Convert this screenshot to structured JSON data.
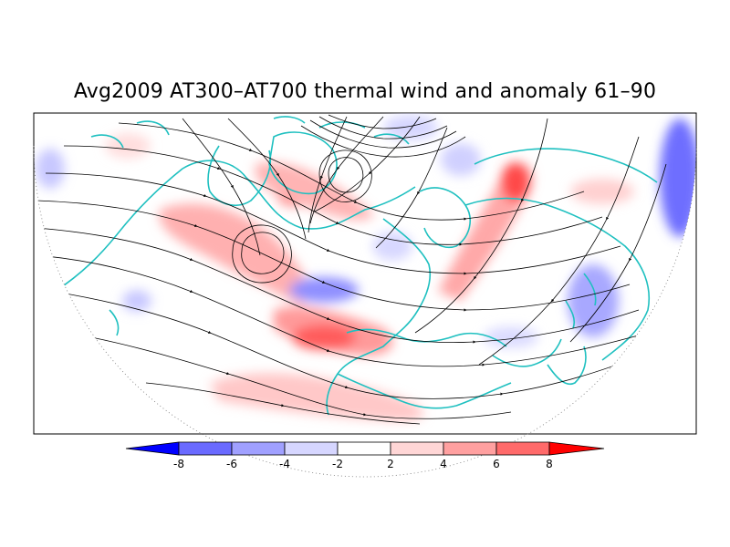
{
  "title": "Avg2009 AT300–AT700 thermal wind and anomaly 61–90",
  "colorbar": {
    "labels": [
      "-8",
      "-6",
      "-4",
      "-2",
      "2",
      "4",
      "6",
      "8"
    ],
    "colors": [
      "#0000ff",
      "#6a6aff",
      "#a0a0ff",
      "#d6d6ff",
      "#ffffff",
      "#ffd6d6",
      "#ffa0a0",
      "#ff6a6a",
      "#ff0000"
    ]
  },
  "map": {
    "coastline_color": "#1fc0c0",
    "streamline_color": "#000000",
    "frame_color": "#000000"
  }
}
